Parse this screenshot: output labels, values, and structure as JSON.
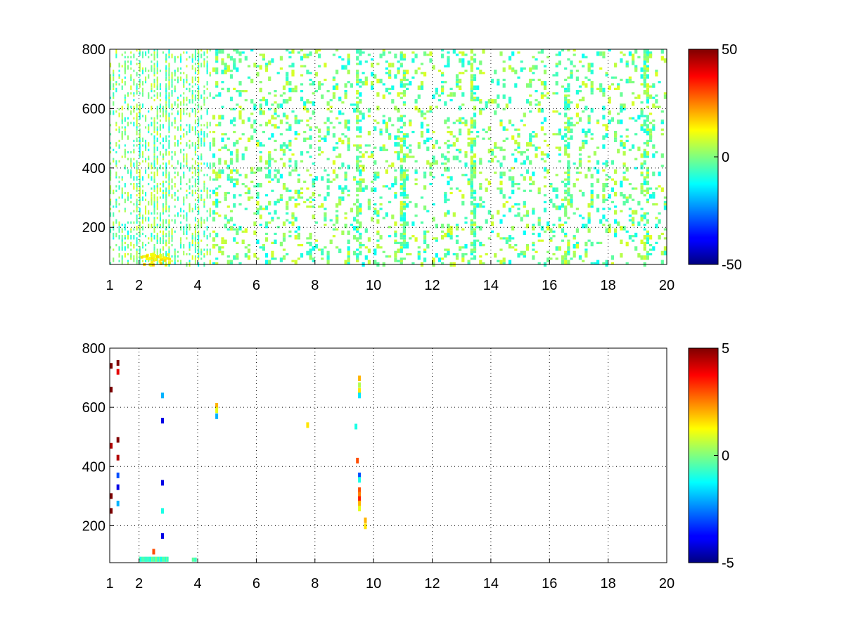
{
  "chart_data": [
    {
      "type": "heatmap",
      "title": "",
      "xlabel": "",
      "ylabel": "",
      "xlim": [
        1,
        20
      ],
      "ylim": [
        75,
        800
      ],
      "xticks": [
        "1",
        "2",
        "4",
        "6",
        "8",
        "10",
        "12",
        "14",
        "16",
        "18",
        "20"
      ],
      "yticks": [
        "200",
        "400",
        "600",
        "800"
      ],
      "grid": true,
      "colormap": "jet",
      "colorbar": {
        "min": -50,
        "max": 50,
        "ticks": [
          "50",
          "0",
          "-50"
        ]
      },
      "description": "Sparse scattered values, mostly in [-15, 15]; denser striping for x < 5; strong vertical streaks near x = 9.5 and x = 11; cluster of positive values near x = 2-3, y < 120",
      "streaks_x": [
        2.0,
        2.6,
        3.0,
        4.0,
        9.5,
        11.0,
        13.4,
        16.6,
        19.3
      ],
      "hot_cluster": {
        "x": [
          2.0,
          3.0
        ],
        "y": [
          75,
          115
        ],
        "value": 15
      }
    },
    {
      "type": "heatmap",
      "title": "",
      "xlabel": "",
      "ylabel": "",
      "xlim": [
        1,
        20
      ],
      "ylim": [
        75,
        800
      ],
      "xticks": [
        "1",
        "2",
        "4",
        "6",
        "8",
        "10",
        "12",
        "14",
        "16",
        "18",
        "20"
      ],
      "yticks": [
        "200",
        "400",
        "600",
        "800"
      ],
      "grid": true,
      "colormap": "jet",
      "colorbar": {
        "min": -5,
        "max": 5,
        "ticks": [
          "5",
          "0",
          "-5"
        ]
      },
      "points": [
        {
          "x": 1.05,
          "y": 740,
          "v": 5
        },
        {
          "x": 1.05,
          "y": 660,
          "v": 5
        },
        {
          "x": 1.05,
          "y": 470,
          "v": 4.5
        },
        {
          "x": 1.05,
          "y": 300,
          "v": 5
        },
        {
          "x": 1.05,
          "y": 250,
          "v": 5
        },
        {
          "x": 1.28,
          "y": 750,
          "v": 5
        },
        {
          "x": 1.28,
          "y": 720,
          "v": 4
        },
        {
          "x": 1.28,
          "y": 490,
          "v": 5
        },
        {
          "x": 1.28,
          "y": 430,
          "v": 4.5
        },
        {
          "x": 1.28,
          "y": 370,
          "v": -3
        },
        {
          "x": 1.28,
          "y": 330,
          "v": -4
        },
        {
          "x": 1.28,
          "y": 275,
          "v": -2
        },
        {
          "x": 2.8,
          "y": 640,
          "v": -2
        },
        {
          "x": 2.8,
          "y": 555,
          "v": -4
        },
        {
          "x": 2.8,
          "y": 345,
          "v": -4
        },
        {
          "x": 2.8,
          "y": 250,
          "v": -1
        },
        {
          "x": 2.8,
          "y": 165,
          "v": -4
        },
        {
          "x": 2.5,
          "y": 112,
          "v": 3
        },
        {
          "x": 4.65,
          "y": 605,
          "v": 2
        },
        {
          "x": 4.65,
          "y": 590,
          "v": 1
        },
        {
          "x": 4.65,
          "y": 570,
          "v": -2
        },
        {
          "x": 7.75,
          "y": 540,
          "v": 1.5
        },
        {
          "x": 9.4,
          "y": 535,
          "v": -1
        },
        {
          "x": 9.45,
          "y": 420,
          "v": 3
        },
        {
          "x": 9.52,
          "y": 698,
          "v": 2
        },
        {
          "x": 9.52,
          "y": 675,
          "v": 0.5
        },
        {
          "x": 9.52,
          "y": 655,
          "v": 1.5
        },
        {
          "x": 9.52,
          "y": 640,
          "v": -1.5
        },
        {
          "x": 9.52,
          "y": 370,
          "v": -3
        },
        {
          "x": 9.52,
          "y": 355,
          "v": -1
        },
        {
          "x": 9.52,
          "y": 320,
          "v": 3
        },
        {
          "x": 9.52,
          "y": 305,
          "v": 2.5
        },
        {
          "x": 9.52,
          "y": 290,
          "v": 3.5
        },
        {
          "x": 9.52,
          "y": 275,
          "v": 2
        },
        {
          "x": 9.52,
          "y": 258,
          "v": 1
        },
        {
          "x": 9.72,
          "y": 218,
          "v": 2
        },
        {
          "x": 9.72,
          "y": 198,
          "v": 1.5
        }
      ],
      "band": {
        "x": [
          2.0,
          3.0
        ],
        "y": [
          78,
          95
        ],
        "value": -0.5
      },
      "band2": {
        "x": [
          3.8,
          3.95
        ],
        "y": [
          78,
          92
        ],
        "value": -0.5
      }
    }
  ]
}
